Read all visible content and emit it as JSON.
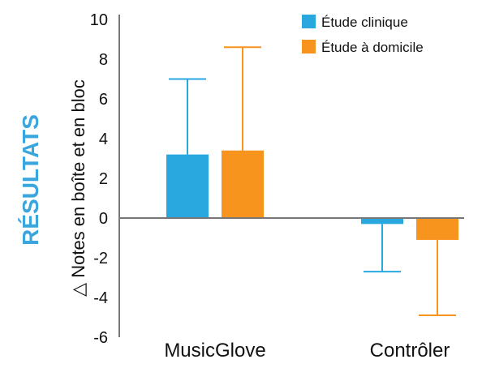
{
  "side_title": "RÉSULTATS",
  "colors": {
    "accent": "#3aa6dd",
    "clinic": "#29a8e0",
    "home": "#f7941d",
    "axis": "#777777"
  },
  "chart_data": {
    "type": "bar",
    "categories": [
      "MusicGlove",
      "Contrôler"
    ],
    "series": [
      {
        "name": "Étude clinique",
        "values": [
          3.2,
          -0.3
        ],
        "error": [
          3.8,
          2.4
        ]
      },
      {
        "name": "Étude à domicile",
        "values": [
          3.4,
          -1.1
        ],
        "error": [
          5.2,
          3.8
        ]
      }
    ],
    "ylabel": "△ Notes en boîte et en bloc",
    "ylim": [
      -6,
      10
    ],
    "yticks": [
      "10",
      "8",
      "6",
      "4",
      "2",
      "0",
      "-2",
      "-4",
      "-6"
    ],
    "legend_position": "top-right",
    "grid": false
  }
}
